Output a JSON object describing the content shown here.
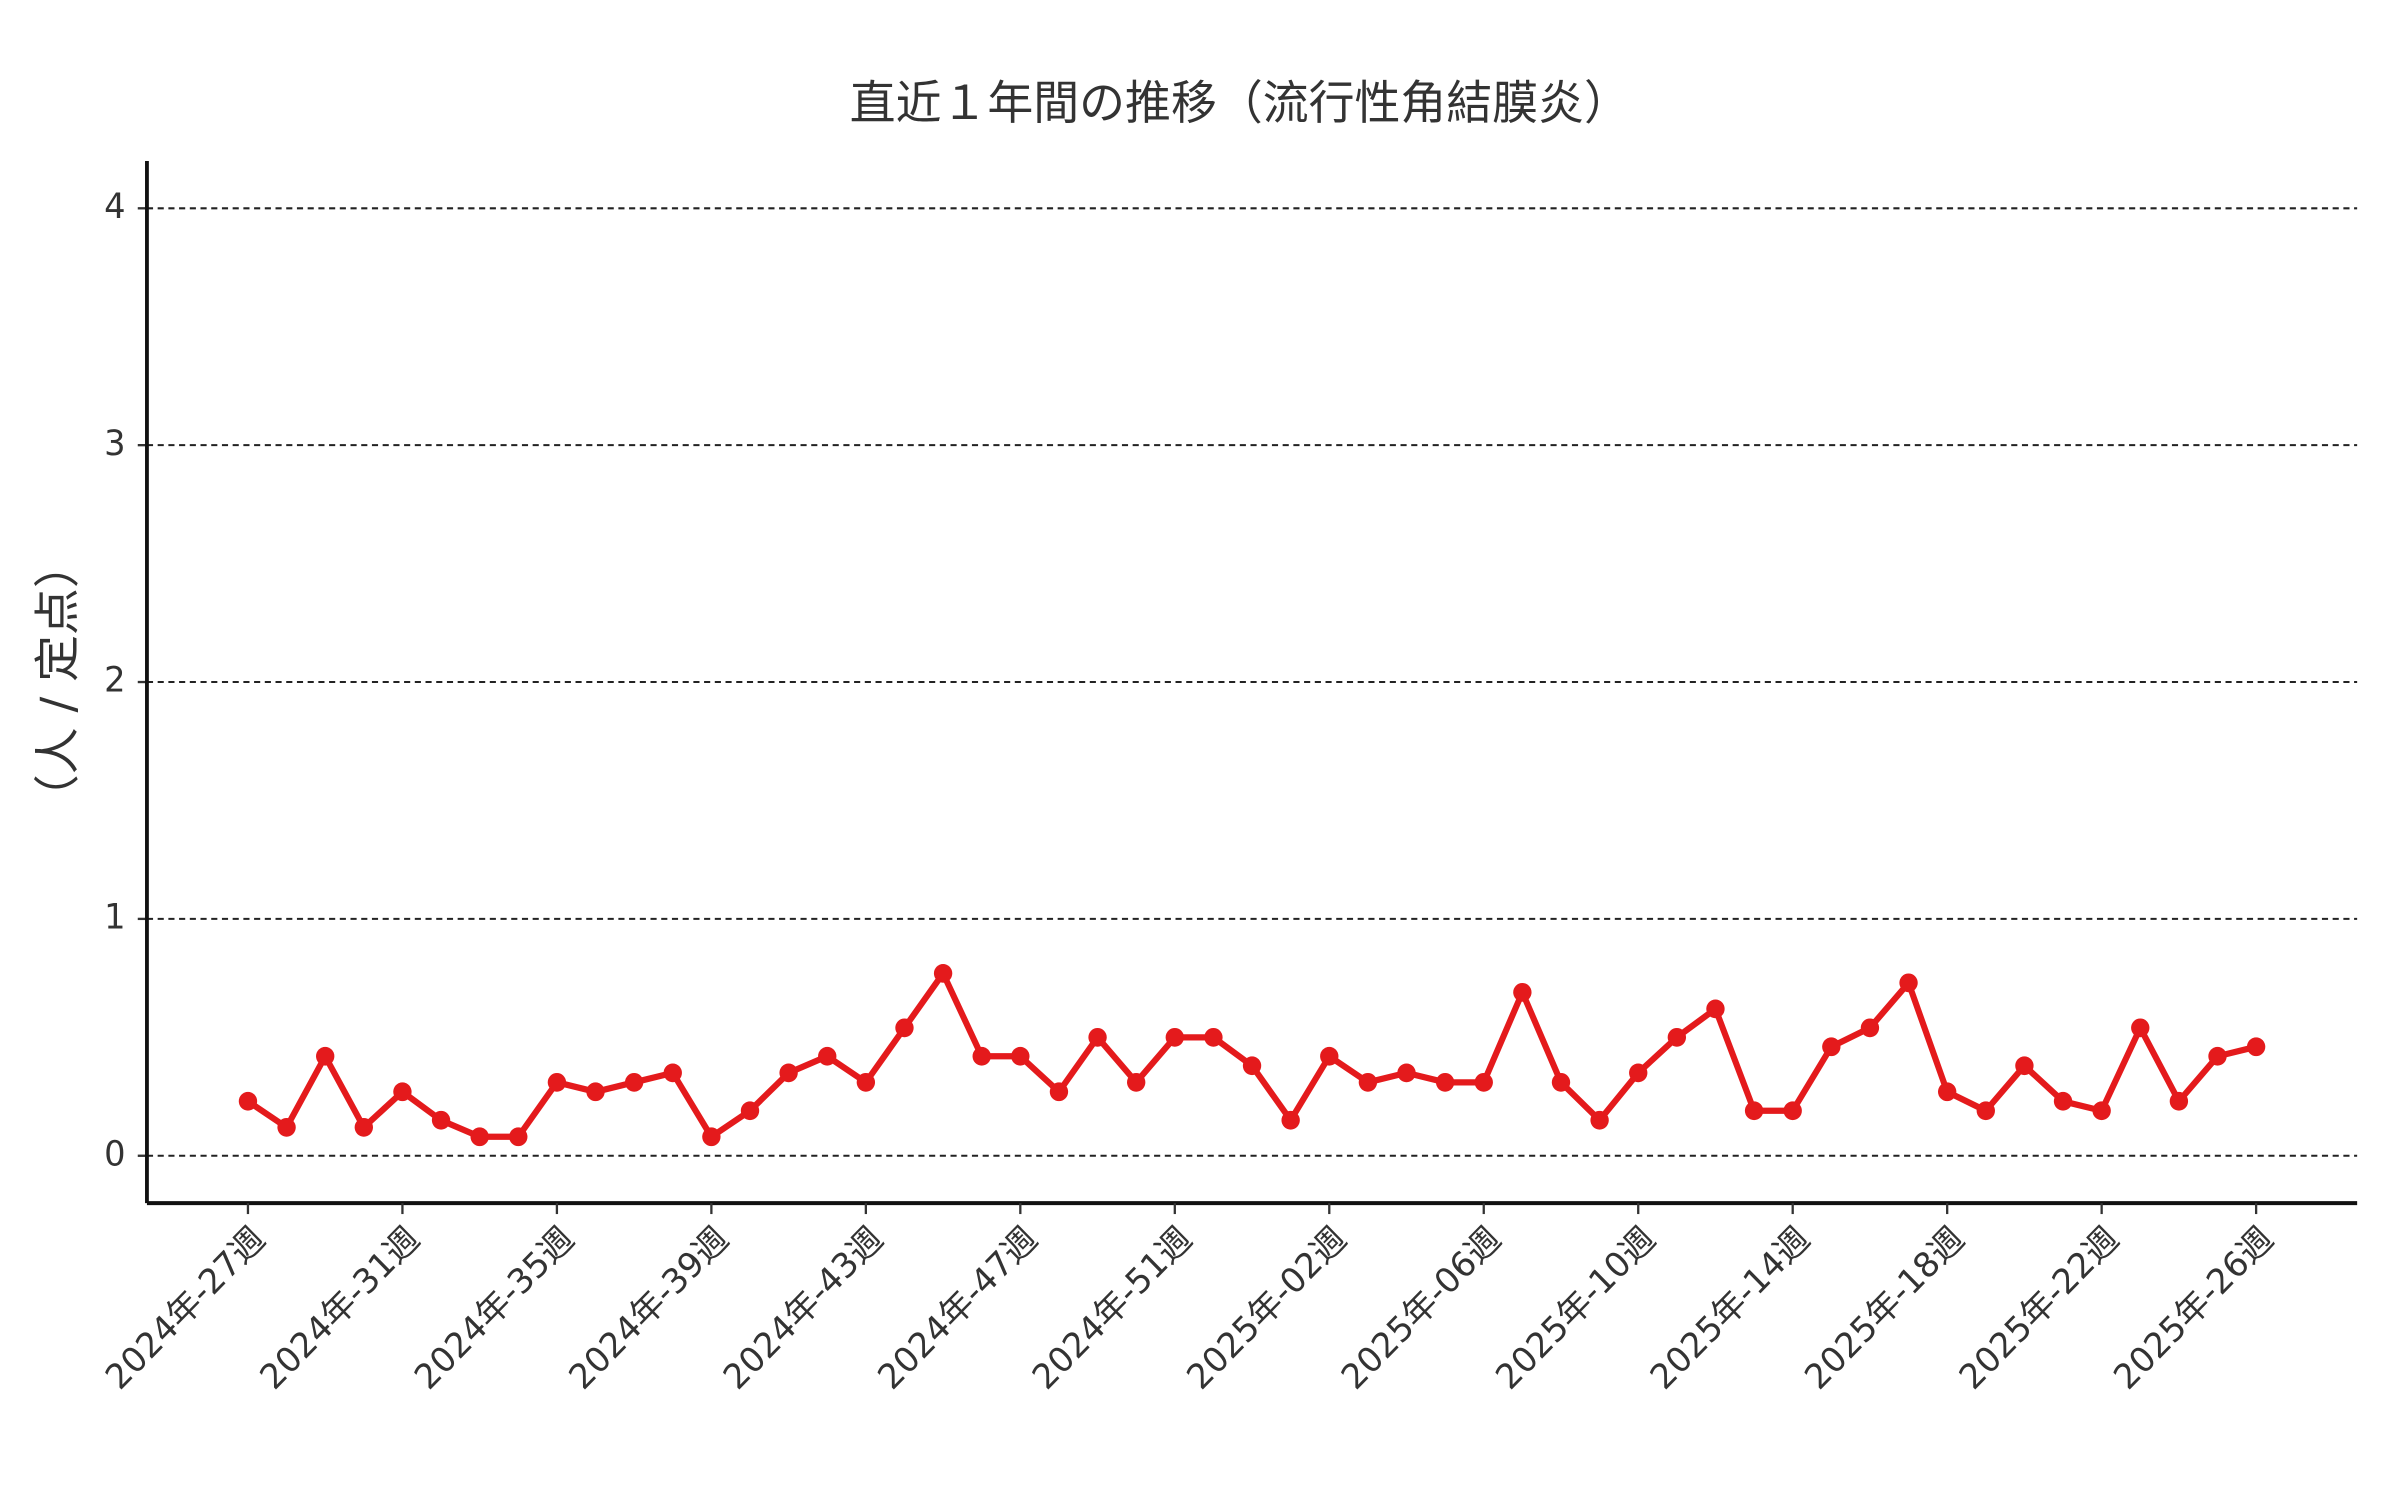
{
  "chart_data": {
    "type": "line",
    "title": "直近１年間の推移（流行性角結膜炎）",
    "y_label": "（人 / 定点）",
    "categories": [
      "2024年-27週",
      null,
      null,
      null,
      "2024年-31週",
      null,
      null,
      null,
      "2024年-35週",
      null,
      null,
      null,
      "2024年-39週",
      null,
      null,
      null,
      "2024年-43週",
      null,
      null,
      null,
      "2024年-47週",
      null,
      null,
      null,
      "2024年-51週",
      null,
      null,
      null,
      "2025年-02週",
      null,
      null,
      null,
      "2025年-06週",
      null,
      null,
      null,
      "2025年-10週",
      null,
      null,
      null,
      "2025年-14週",
      null,
      null,
      null,
      "2025年-18週",
      null,
      null,
      null,
      "2025年-22週",
      null,
      null,
      null,
      "2025年-26週"
    ],
    "series": [
      {
        "name": "流行性角結膜炎",
        "color": "#e41a1c",
        "values": [
          0.23,
          0.12,
          0.42,
          0.12,
          0.27,
          0.15,
          0.08,
          0.08,
          0.31,
          0.27,
          0.31,
          0.35,
          0.08,
          0.19,
          0.35,
          0.42,
          0.31,
          0.54,
          0.77,
          0.42,
          0.42,
          0.27,
          0.5,
          0.31,
          0.5,
          0.5,
          0.38,
          0.15,
          0.42,
          0.31,
          0.35,
          0.31,
          0.31,
          0.69,
          0.31,
          0.15,
          0.35,
          0.5,
          0.62,
          0.19,
          0.19,
          0.46,
          0.54,
          0.73,
          0.27,
          0.19,
          0.38,
          0.23,
          0.19,
          0.54,
          0.23,
          0.42,
          0.46
        ]
      }
    ],
    "ylim": [
      -0.2,
      4.2
    ],
    "yticks": [
      0,
      1,
      2,
      3,
      4
    ],
    "grid": true
  }
}
